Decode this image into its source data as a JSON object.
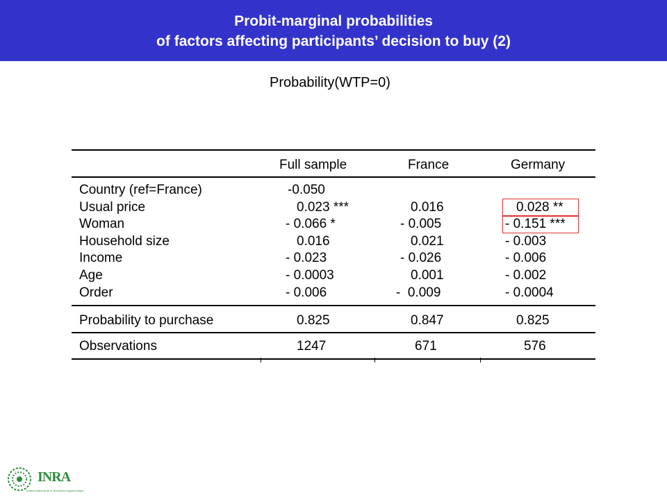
{
  "header": {
    "title_line1": "Probit-marginal probabilities",
    "title_line2": "of factors affecting participants’ decision to buy (2)"
  },
  "subtitle": "Probability(WTP=0)",
  "table": {
    "columns": [
      "Full sample",
      "France",
      "Germany"
    ],
    "rows": [
      {
        "label": "Country (ref=France)",
        "full": "-0.050",
        "france": "",
        "germany": ""
      },
      {
        "label": "Usual price",
        "full": "0.023 ***",
        "france": "0.016",
        "germany": "0.028 **"
      },
      {
        "label": "Woman",
        "full": "- 0.066 *",
        "france": "- 0.005",
        "germany": "- 0.151 ***"
      },
      {
        "label": "Household size",
        "full": "0.016",
        "france": "0.021",
        "germany": "- 0.003"
      },
      {
        "label": "Income",
        "full": "- 0.023",
        "france": "- 0.026",
        "germany": "- 0.006"
      },
      {
        "label": "Age",
        "full": "- 0.0003",
        "france": "0.001",
        "germany": "- 0.002"
      },
      {
        "label": "Order",
        "full": "- 0.006",
        "france": "-  0.009",
        "germany": "- 0.0004"
      }
    ],
    "purchase": {
      "label": "Probability to purchase",
      "full": "0.825",
      "france": "0.847",
      "germany": "0.825"
    },
    "observations": {
      "label": "Observations",
      "full": "1247",
      "france": "671",
      "germany": "576"
    }
  },
  "logo": {
    "text": "INRA",
    "tagline": "Institut National de la Recherche Agronomique",
    "color": "#2e8b3a"
  },
  "colors": {
    "header_bg": "#3333cc",
    "highlight": "#e03030"
  }
}
